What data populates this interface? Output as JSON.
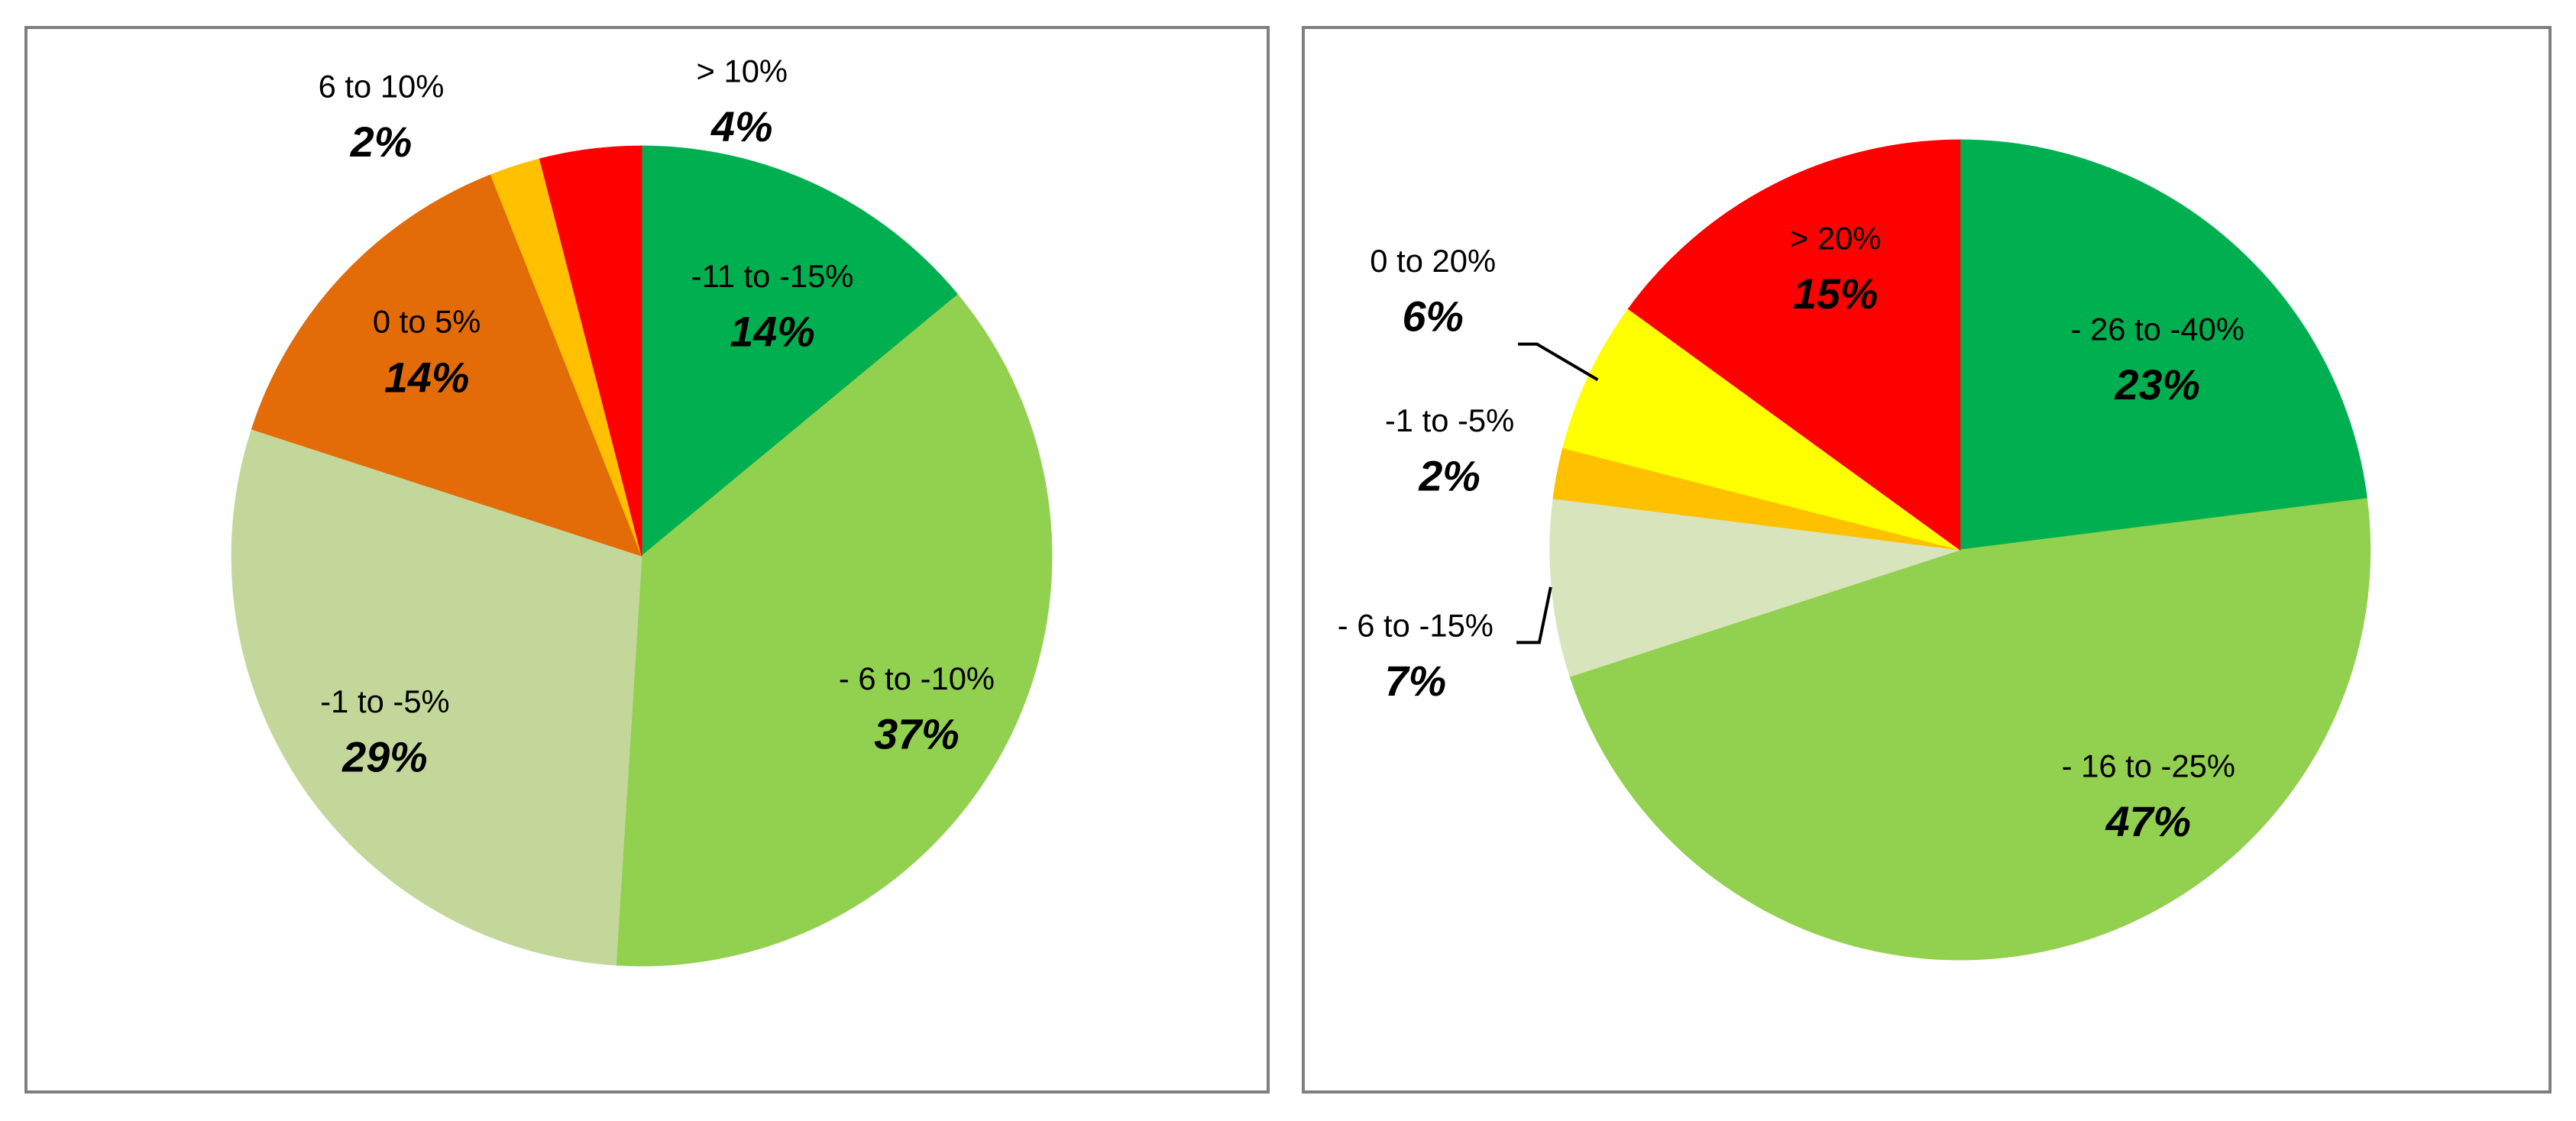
{
  "chart_data": [
    {
      "type": "pie",
      "categories": [
        "-11 to -15%",
        "- 6 to -10%",
        "-1 to -5%",
        "0 to 5%",
        "6 to 10%",
        "> 10%"
      ],
      "values": [
        14,
        37,
        29,
        14,
        2,
        4
      ],
      "value_labels": [
        "14%",
        "37%",
        "29%",
        "14%",
        "2%",
        "4%"
      ],
      "colors": [
        "#00b050",
        "#92d050",
        "#c4d79b",
        "#e36c09",
        "#ffc000",
        "#ff0000"
      ],
      "start_angle_deg": 0,
      "direction": "clockwise",
      "legend": "none"
    },
    {
      "type": "pie",
      "categories": [
        "- 26 to -40%",
        "- 16 to -25%",
        "- 6 to -15%",
        "-1 to -5%",
        "0 to 20%",
        "> 20%"
      ],
      "values": [
        23,
        47,
        7,
        2,
        6,
        15
      ],
      "value_labels": [
        "23%",
        "47%",
        "7%",
        "2%",
        "6%",
        "15%"
      ],
      "colors": [
        "#00b050",
        "#92d050",
        "#d8e4bc",
        "#ffc000",
        "#ffff00",
        "#ff0000"
      ],
      "start_angle_deg": 0,
      "direction": "clockwise",
      "legend": "none"
    }
  ]
}
